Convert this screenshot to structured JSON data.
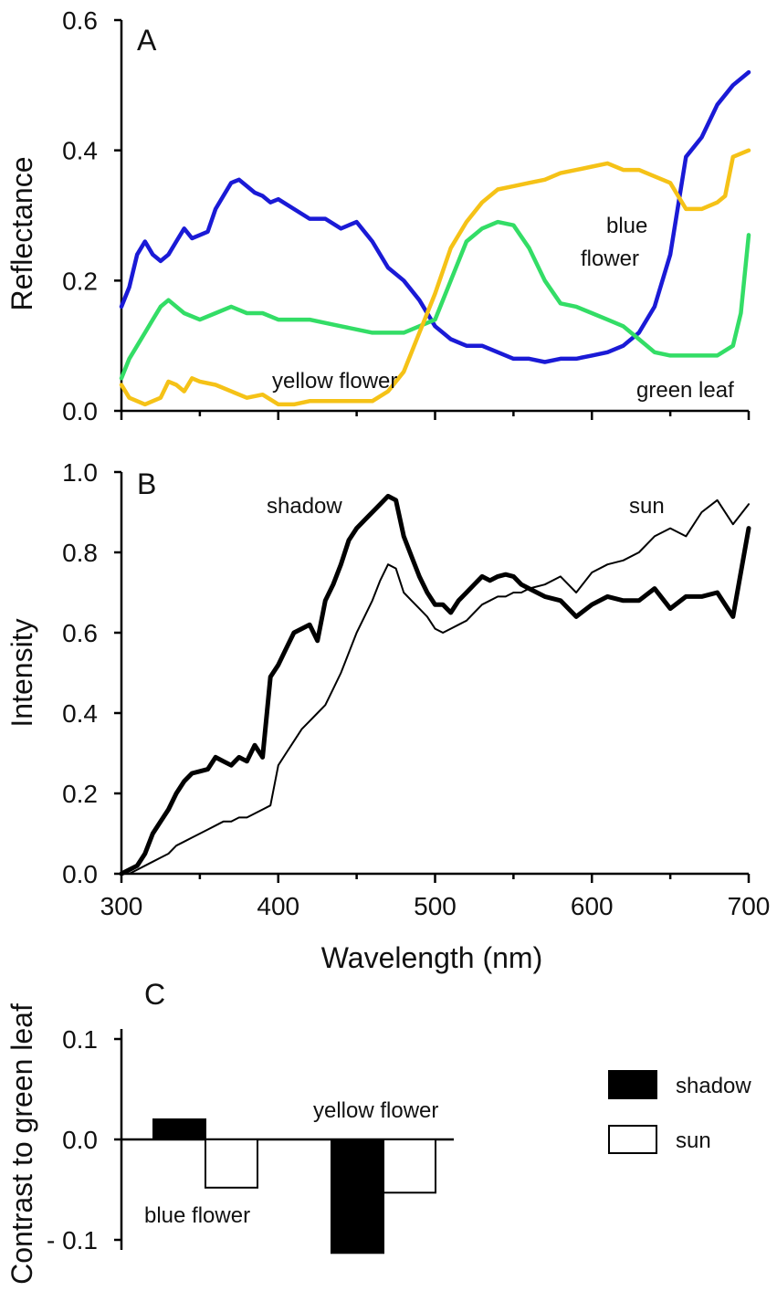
{
  "chart_data": [
    {
      "panel": "A",
      "type": "line",
      "panel_label": "A",
      "ylabel": "Reflectance",
      "xlabel": "",
      "xlim": [
        300,
        700
      ],
      "ylim": [
        0,
        0.6
      ],
      "yticks": [
        "0.0",
        "0.2",
        "0.4",
        "0.6"
      ],
      "annotations": [
        {
          "id": "yellow",
          "text": "yellow flower"
        },
        {
          "id": "blue1",
          "text": "blue"
        },
        {
          "id": "blue2",
          "text": "flower"
        },
        {
          "id": "green",
          "text": "green leaf"
        }
      ],
      "series": [
        {
          "name": "blue flower",
          "color": "#1a1ad6",
          "x": [
            300,
            305,
            310,
            315,
            320,
            325,
            330,
            335,
            340,
            345,
            350,
            355,
            360,
            365,
            370,
            375,
            380,
            385,
            390,
            395,
            400,
            410,
            420,
            430,
            440,
            450,
            460,
            470,
            480,
            490,
            500,
            510,
            520,
            530,
            540,
            550,
            560,
            570,
            580,
            590,
            600,
            610,
            620,
            630,
            640,
            650,
            660,
            670,
            680,
            690,
            700
          ],
          "y": [
            0.16,
            0.19,
            0.24,
            0.26,
            0.24,
            0.23,
            0.24,
            0.26,
            0.28,
            0.265,
            0.27,
            0.275,
            0.31,
            0.33,
            0.35,
            0.355,
            0.345,
            0.335,
            0.33,
            0.32,
            0.325,
            0.31,
            0.295,
            0.295,
            0.28,
            0.29,
            0.26,
            0.22,
            0.2,
            0.17,
            0.13,
            0.11,
            0.1,
            0.1,
            0.09,
            0.08,
            0.08,
            0.075,
            0.08,
            0.08,
            0.085,
            0.09,
            0.1,
            0.12,
            0.16,
            0.24,
            0.39,
            0.42,
            0.47,
            0.5,
            0.52
          ]
        },
        {
          "name": "green leaf",
          "color": "#33dd66",
          "x": [
            300,
            305,
            310,
            315,
            320,
            325,
            330,
            340,
            350,
            360,
            370,
            380,
            390,
            400,
            420,
            440,
            460,
            480,
            490,
            500,
            510,
            520,
            530,
            540,
            550,
            560,
            570,
            580,
            590,
            600,
            610,
            620,
            630,
            640,
            650,
            660,
            670,
            680,
            690,
            695,
            700
          ],
          "y": [
            0.05,
            0.08,
            0.1,
            0.12,
            0.14,
            0.16,
            0.17,
            0.15,
            0.14,
            0.15,
            0.16,
            0.15,
            0.15,
            0.14,
            0.14,
            0.13,
            0.12,
            0.12,
            0.13,
            0.14,
            0.2,
            0.26,
            0.28,
            0.29,
            0.285,
            0.25,
            0.2,
            0.165,
            0.16,
            0.15,
            0.14,
            0.13,
            0.11,
            0.09,
            0.085,
            0.085,
            0.085,
            0.085,
            0.1,
            0.15,
            0.27
          ]
        },
        {
          "name": "yellow flower",
          "color": "#f5c217",
          "x": [
            300,
            305,
            310,
            315,
            320,
            325,
            330,
            335,
            340,
            345,
            350,
            360,
            370,
            380,
            390,
            400,
            410,
            420,
            440,
            460,
            470,
            480,
            490,
            500,
            510,
            520,
            530,
            540,
            550,
            560,
            570,
            580,
            590,
            600,
            610,
            620,
            630,
            640,
            650,
            655,
            660,
            670,
            680,
            685,
            690,
            700
          ],
          "y": [
            0.04,
            0.02,
            0.015,
            0.01,
            0.015,
            0.02,
            0.045,
            0.04,
            0.03,
            0.05,
            0.045,
            0.04,
            0.03,
            0.02,
            0.025,
            0.01,
            0.01,
            0.015,
            0.015,
            0.015,
            0.03,
            0.06,
            0.12,
            0.18,
            0.25,
            0.29,
            0.32,
            0.34,
            0.345,
            0.35,
            0.355,
            0.365,
            0.37,
            0.375,
            0.38,
            0.37,
            0.37,
            0.36,
            0.35,
            0.33,
            0.31,
            0.31,
            0.32,
            0.33,
            0.39,
            0.4
          ]
        }
      ]
    },
    {
      "panel": "B",
      "type": "line",
      "panel_label": "B",
      "ylabel": "Intensity",
      "xlabel": "Wavelength (nm)",
      "xlim": [
        300,
        700
      ],
      "ylim": [
        0,
        1.0
      ],
      "xticks": [
        "300",
        "400",
        "500",
        "600",
        "700"
      ],
      "yticks": [
        "0.0",
        "0.2",
        "0.4",
        "0.6",
        "0.8",
        "1.0"
      ],
      "annotations": [
        {
          "id": "shadow",
          "text": "shadow"
        },
        {
          "id": "sun",
          "text": "sun"
        }
      ],
      "series": [
        {
          "name": "shadow",
          "color": "#000000",
          "width": 5,
          "x": [
            300,
            305,
            310,
            315,
            320,
            325,
            330,
            335,
            340,
            345,
            350,
            355,
            360,
            365,
            370,
            375,
            380,
            385,
            390,
            395,
            400,
            405,
            410,
            415,
            420,
            425,
            430,
            435,
            440,
            445,
            450,
            455,
            460,
            465,
            470,
            475,
            480,
            485,
            490,
            495,
            500,
            505,
            510,
            515,
            520,
            525,
            530,
            535,
            540,
            545,
            550,
            555,
            560,
            570,
            580,
            590,
            600,
            610,
            620,
            630,
            640,
            650,
            660,
            670,
            680,
            690,
            700
          ],
          "y": [
            0,
            0.01,
            0.02,
            0.05,
            0.1,
            0.13,
            0.16,
            0.2,
            0.23,
            0.25,
            0.255,
            0.26,
            0.29,
            0.28,
            0.27,
            0.29,
            0.28,
            0.32,
            0.29,
            0.49,
            0.52,
            0.56,
            0.6,
            0.61,
            0.62,
            0.58,
            0.68,
            0.72,
            0.77,
            0.83,
            0.86,
            0.88,
            0.9,
            0.92,
            0.94,
            0.93,
            0.84,
            0.79,
            0.74,
            0.7,
            0.67,
            0.67,
            0.65,
            0.68,
            0.7,
            0.72,
            0.74,
            0.73,
            0.74,
            0.745,
            0.74,
            0.72,
            0.71,
            0.69,
            0.68,
            0.64,
            0.67,
            0.69,
            0.68,
            0.68,
            0.71,
            0.66,
            0.69,
            0.69,
            0.7,
            0.64,
            0.86
          ]
        },
        {
          "name": "sun",
          "color": "#000000",
          "width": 2,
          "x": [
            300,
            305,
            310,
            315,
            320,
            325,
            330,
            335,
            340,
            345,
            350,
            355,
            360,
            365,
            370,
            375,
            380,
            385,
            390,
            395,
            400,
            405,
            410,
            415,
            420,
            425,
            430,
            435,
            440,
            445,
            450,
            455,
            460,
            465,
            470,
            475,
            480,
            485,
            490,
            495,
            500,
            505,
            510,
            515,
            520,
            525,
            530,
            535,
            540,
            545,
            550,
            555,
            560,
            570,
            580,
            590,
            600,
            610,
            620,
            630,
            640,
            650,
            660,
            670,
            680,
            690,
            700
          ],
          "y": [
            0,
            0,
            0.01,
            0.02,
            0.03,
            0.04,
            0.05,
            0.07,
            0.08,
            0.09,
            0.1,
            0.11,
            0.12,
            0.13,
            0.13,
            0.14,
            0.14,
            0.15,
            0.16,
            0.17,
            0.27,
            0.3,
            0.33,
            0.36,
            0.38,
            0.4,
            0.42,
            0.46,
            0.5,
            0.55,
            0.6,
            0.64,
            0.68,
            0.73,
            0.77,
            0.76,
            0.7,
            0.68,
            0.66,
            0.64,
            0.61,
            0.6,
            0.61,
            0.62,
            0.63,
            0.65,
            0.67,
            0.68,
            0.69,
            0.69,
            0.7,
            0.7,
            0.71,
            0.72,
            0.74,
            0.7,
            0.75,
            0.77,
            0.78,
            0.8,
            0.84,
            0.86,
            0.84,
            0.9,
            0.93,
            0.87,
            0.92
          ]
        }
      ]
    },
    {
      "panel": "C",
      "type": "bar",
      "panel_label": "C",
      "ylabel": "Contrast to green leaf",
      "ylim": [
        -0.11,
        0.11
      ],
      "yticks": [
        "0.1",
        "0.0",
        "- 0.1"
      ],
      "categories": [
        "blue flower",
        "yellow flower"
      ],
      "series": [
        {
          "name": "shadow",
          "fill": "#000000",
          "values": [
            0.02,
            -0.113
          ]
        },
        {
          "name": "sun",
          "fill": "#ffffff",
          "values": [
            -0.048,
            -0.053
          ]
        }
      ],
      "legend": {
        "position": "right",
        "entries": [
          "shadow",
          "sun"
        ]
      }
    }
  ]
}
